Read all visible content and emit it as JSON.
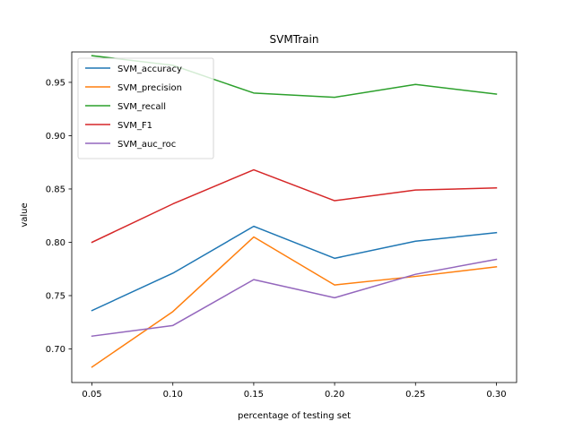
{
  "chart_data": {
    "type": "line",
    "title": "SVMTrain",
    "xlabel": "percentage of testing set",
    "ylabel": "value",
    "x": [
      0.05,
      0.1,
      0.15,
      0.2,
      0.25,
      0.3
    ],
    "xlim": [
      0.0375,
      0.3125
    ],
    "ylim": [
      0.6685,
      0.9785
    ],
    "x_ticks": [
      0.05,
      0.1,
      0.15,
      0.2,
      0.25,
      0.3
    ],
    "x_tick_labels": [
      "0.05",
      "0.10",
      "0.15",
      "0.20",
      "0.25",
      "0.30"
    ],
    "y_ticks": [
      0.7,
      0.75,
      0.8,
      0.85,
      0.9,
      0.95
    ],
    "y_tick_labels": [
      "0.70",
      "0.75",
      "0.80",
      "0.85",
      "0.90",
      "0.95"
    ],
    "grid": false,
    "legend_position": "top-left",
    "series": [
      {
        "name": "SVM_accuracy",
        "color": "#1f77b4",
        "values": [
          0.736,
          0.771,
          0.815,
          0.785,
          0.801,
          0.809
        ]
      },
      {
        "name": "SVM_precision",
        "color": "#ff7f0e",
        "values": [
          0.683,
          0.735,
          0.805,
          0.76,
          0.768,
          0.777
        ]
      },
      {
        "name": "SVM_recall",
        "color": "#2ca02c",
        "values": [
          0.975,
          0.966,
          0.94,
          0.936,
          0.948,
          0.939
        ]
      },
      {
        "name": "SVM_F1",
        "color": "#d62728",
        "values": [
          0.8,
          0.836,
          0.868,
          0.839,
          0.849,
          0.851
        ]
      },
      {
        "name": "SVM_auc_roc",
        "color": "#9467bd",
        "values": [
          0.712,
          0.722,
          0.765,
          0.748,
          0.77,
          0.784
        ]
      }
    ]
  }
}
